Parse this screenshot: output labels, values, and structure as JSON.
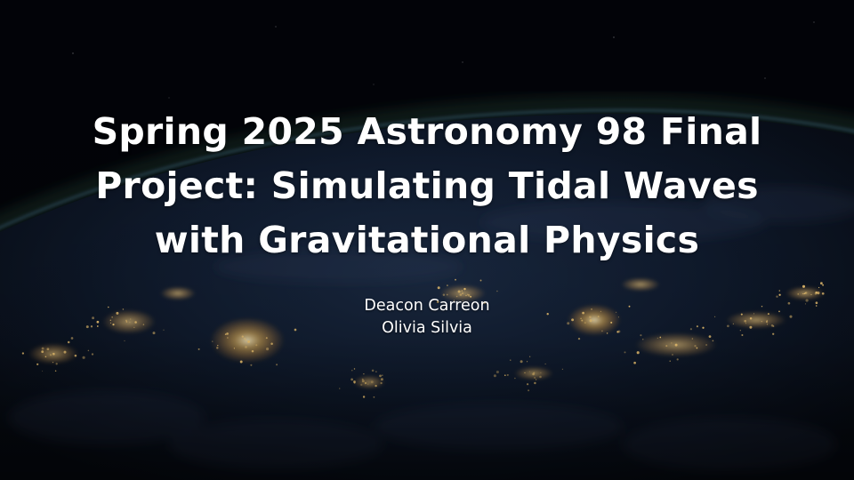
{
  "slide": {
    "title_lines": [
      "Spring 2025 Astronomy 98 Final",
      "Project: Simulating Tidal Waves",
      "with Gravitational Physics"
    ],
    "authors": [
      "Deacon Carreon",
      "Olivia Silvia"
    ]
  },
  "colors": {
    "space": "#020308",
    "earth_night": "#0d1a2c",
    "atmosphere_glow": "#2f6a4a",
    "city_lights": "#ffcf6a",
    "text": "#ffffff"
  }
}
